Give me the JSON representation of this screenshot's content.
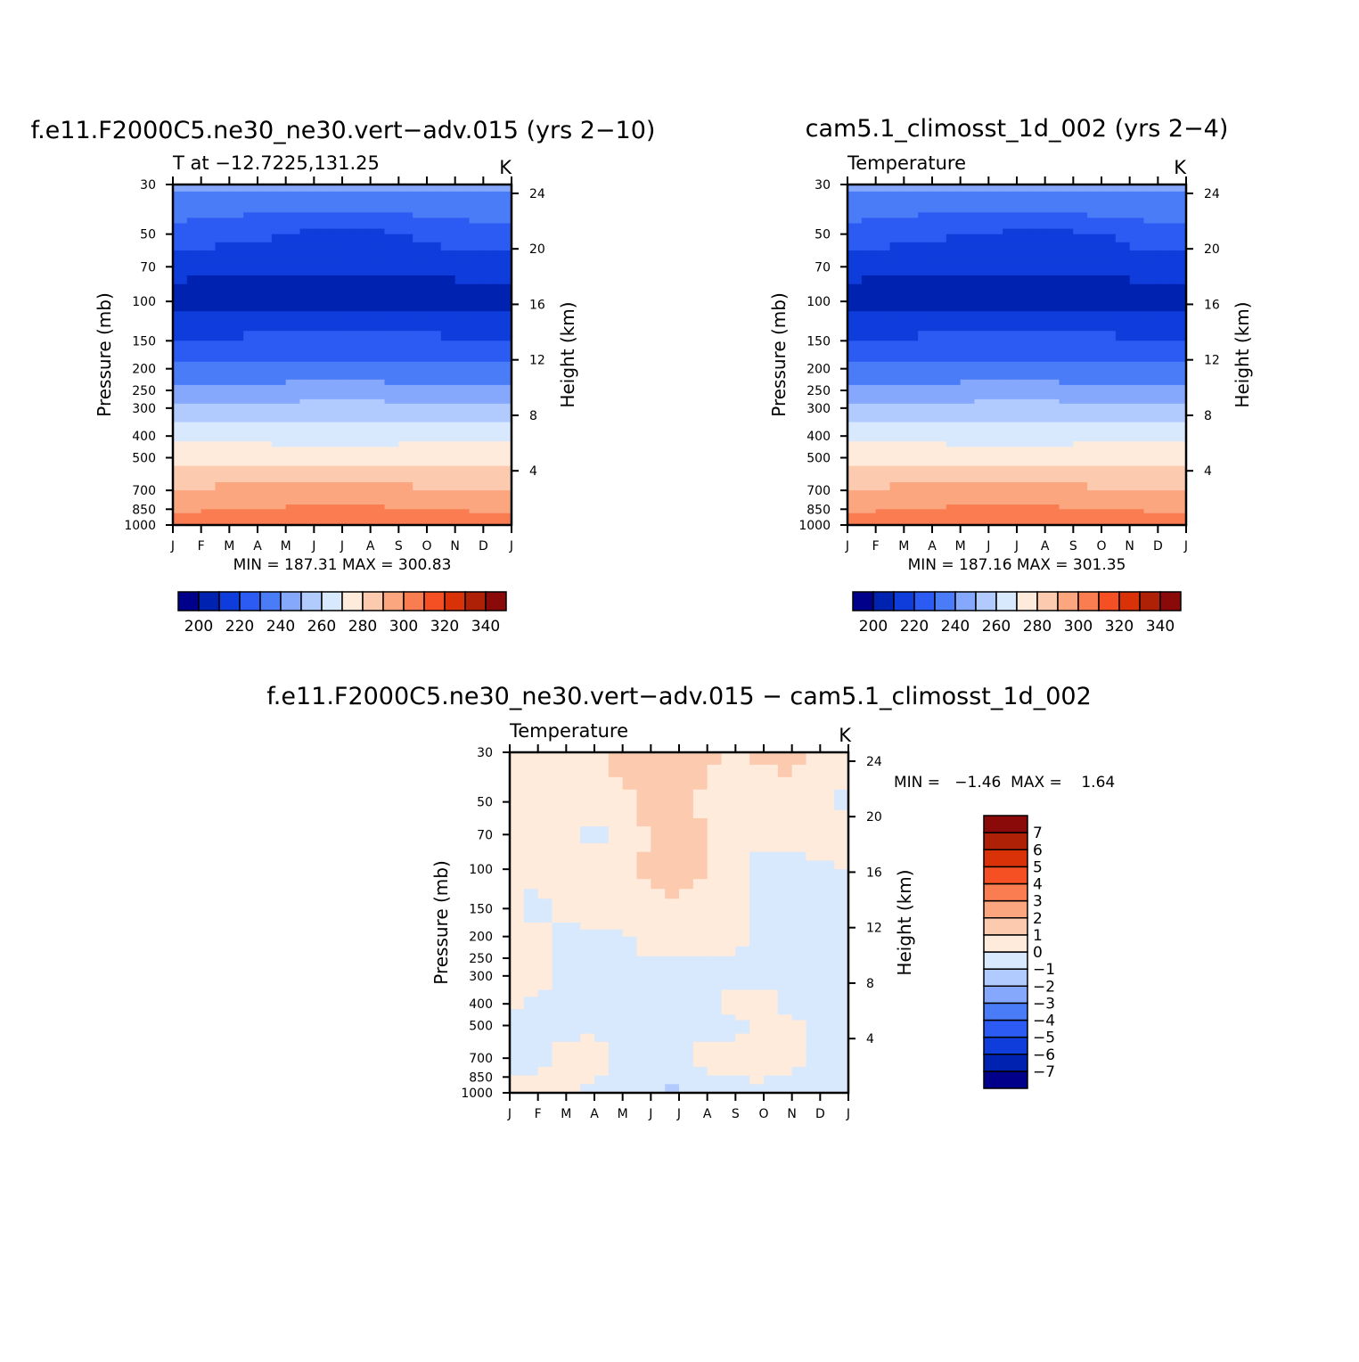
{
  "chart_data": [
    {
      "type": "heatmap",
      "title": "f.e11.F2000C5.ne30_ne30.vert−adv.015 (yrs 2−10)",
      "left_label": "T at −12.7225,131.25",
      "right_label": "K",
      "xlabel": "",
      "ylabel": "Pressure (mb)",
      "ylabel_right": "Height (km)",
      "x_ticks": [
        "J",
        "F",
        "M",
        "A",
        "M",
        "J",
        "J",
        "A",
        "S",
        "O",
        "N",
        "D",
        "J"
      ],
      "y_ticks": [
        "30",
        "50",
        "70",
        "100",
        "150",
        "200",
        "250",
        "300",
        "400",
        "500",
        "700",
        "850",
        "1000"
      ],
      "y_ticks_right": [
        "24",
        "20",
        "16",
        "12",
        "8",
        "4"
      ],
      "stats_text": "MIN = 187.31  MAX = 300.83",
      "min": 187.31,
      "max": 300.83,
      "colorbar": {
        "orientation": "horizontal",
        "colors": [
          "#00008A",
          "#0022B0",
          "#0E3DDC",
          "#2C5BF3",
          "#4B7CF8",
          "#86A8FC",
          "#B2CBFE",
          "#D8E8FD",
          "#FFEBDB",
          "#FCCAAE",
          "#FBA67F",
          "#FA7C51",
          "#F45023",
          "#DA3208",
          "#AE2106",
          "#8A0A0A"
        ],
        "labels": [
          "200",
          "220",
          "240",
          "260",
          "280",
          "300",
          "320",
          "340"
        ]
      },
      "levels_by_pressure": [
        {
          "pressure": 30,
          "values": [
            232,
            232,
            232,
            232,
            232,
            232,
            232,
            232,
            232,
            232,
            232,
            232,
            232
          ]
        },
        {
          "pressure": 40,
          "values": [
            223,
            222,
            222,
            221,
            220,
            219,
            219,
            219,
            221,
            222,
            223,
            223,
            223
          ]
        },
        {
          "pressure": 50,
          "values": [
            218,
            216,
            214,
            212,
            210,
            208,
            208,
            208,
            210,
            212,
            214,
            216,
            218
          ]
        },
        {
          "pressure": 70,
          "values": [
            205,
            204,
            203,
            202,
            202,
            202,
            202,
            202,
            202,
            203,
            204,
            205,
            205
          ]
        },
        {
          "pressure": 100,
          "values": [
            193,
            193,
            193,
            193,
            193,
            193,
            193,
            193,
            193,
            193,
            193,
            193,
            193
          ]
        },
        {
          "pressure": 150,
          "values": [
            212,
            212,
            212,
            213,
            213,
            214,
            214,
            214,
            213,
            213,
            212,
            212,
            212
          ]
        },
        {
          "pressure": 200,
          "values": [
            222,
            222,
            222,
            222,
            223,
            223,
            223,
            223,
            223,
            223,
            222,
            222,
            222
          ]
        },
        {
          "pressure": 250,
          "values": [
            234,
            234,
            234,
            234,
            234,
            235,
            235,
            235,
            234,
            234,
            234,
            234,
            234
          ]
        },
        {
          "pressure": 300,
          "values": [
            242,
            242,
            242,
            243,
            243,
            244,
            244,
            244,
            243,
            243,
            242,
            242,
            242
          ]
        },
        {
          "pressure": 400,
          "values": [
            257,
            257,
            256,
            256,
            255,
            255,
            255,
            255,
            255,
            256,
            256,
            257,
            257
          ]
        },
        {
          "pressure": 500,
          "values": [
            268,
            268,
            268,
            268,
            268,
            268,
            268,
            268,
            268,
            268,
            268,
            268,
            268
          ]
        },
        {
          "pressure": 700,
          "values": [
            281,
            281,
            282,
            282,
            282,
            283,
            283,
            283,
            282,
            281,
            281,
            281,
            281
          ]
        },
        {
          "pressure": 850,
          "values": [
            289,
            289,
            290,
            290,
            291,
            292,
            292,
            292,
            291,
            290,
            289,
            289,
            289
          ]
        },
        {
          "pressure": 1000,
          "values": [
            295,
            295,
            296,
            296,
            297,
            298,
            298,
            298,
            299,
            300,
            298,
            296,
            295
          ]
        }
      ]
    },
    {
      "type": "heatmap",
      "title": "cam5.1_climosst_1d_002 (yrs 2−4)",
      "left_label": "Temperature",
      "right_label": "K",
      "xlabel": "",
      "ylabel": "Pressure (mb)",
      "ylabel_right": "Height (km)",
      "x_ticks": [
        "J",
        "F",
        "M",
        "A",
        "M",
        "J",
        "J",
        "A",
        "S",
        "O",
        "N",
        "D",
        "J"
      ],
      "y_ticks": [
        "30",
        "50",
        "70",
        "100",
        "150",
        "200",
        "250",
        "300",
        "400",
        "500",
        "700",
        "850",
        "1000"
      ],
      "y_ticks_right": [
        "24",
        "20",
        "16",
        "12",
        "8",
        "4"
      ],
      "stats_text": "MIN = 187.16  MAX = 301.35",
      "min": 187.16,
      "max": 301.35,
      "colorbar": {
        "orientation": "horizontal",
        "colors": [
          "#00008A",
          "#0022B0",
          "#0E3DDC",
          "#2C5BF3",
          "#4B7CF8",
          "#86A8FC",
          "#B2CBFE",
          "#D8E8FD",
          "#FFEBDB",
          "#FCCAAE",
          "#FBA67F",
          "#FA7C51",
          "#F45023",
          "#DA3208",
          "#AE2106",
          "#8A0A0A"
        ],
        "labels": [
          "200",
          "220",
          "240",
          "260",
          "280",
          "300",
          "320",
          "340"
        ]
      },
      "levels_by_pressure": [
        {
          "pressure": 30,
          "values": [
            232,
            232,
            232,
            232,
            232,
            232,
            232,
            232,
            232,
            232,
            232,
            232,
            232
          ]
        },
        {
          "pressure": 40,
          "values": [
            223,
            222,
            222,
            221,
            220,
            219,
            219,
            219,
            220,
            222,
            223,
            223,
            223
          ]
        },
        {
          "pressure": 50,
          "values": [
            218,
            216,
            214,
            212,
            210,
            209,
            208,
            208,
            208,
            210,
            213,
            216,
            218
          ]
        },
        {
          "pressure": 70,
          "values": [
            205,
            204,
            203,
            202,
            202,
            202,
            202,
            202,
            202,
            203,
            204,
            205,
            205
          ]
        },
        {
          "pressure": 100,
          "values": [
            193,
            193,
            193,
            193,
            193,
            193,
            193,
            193,
            193,
            193,
            193,
            193,
            193
          ]
        },
        {
          "pressure": 150,
          "values": [
            212,
            212,
            212,
            213,
            213,
            213,
            213,
            213,
            213,
            213,
            212,
            212,
            212
          ]
        },
        {
          "pressure": 200,
          "values": [
            222,
            222,
            222,
            222,
            223,
            223,
            223,
            223,
            223,
            223,
            222,
            222,
            222
          ]
        },
        {
          "pressure": 250,
          "values": [
            234,
            234,
            234,
            234,
            234,
            235,
            235,
            235,
            234,
            234,
            234,
            234,
            234
          ]
        },
        {
          "pressure": 300,
          "values": [
            242,
            242,
            242,
            243,
            243,
            244,
            244,
            244,
            243,
            243,
            242,
            242,
            242
          ]
        },
        {
          "pressure": 400,
          "values": [
            257,
            257,
            256,
            256,
            255,
            255,
            255,
            255,
            255,
            256,
            256,
            257,
            257
          ]
        },
        {
          "pressure": 500,
          "values": [
            268,
            268,
            268,
            268,
            268,
            268,
            268,
            268,
            268,
            268,
            268,
            268,
            268
          ]
        },
        {
          "pressure": 700,
          "values": [
            281,
            281,
            282,
            282,
            283,
            283,
            283,
            283,
            282,
            281,
            281,
            281,
            281
          ]
        },
        {
          "pressure": 850,
          "values": [
            289,
            289,
            290,
            290,
            291,
            292,
            292,
            292,
            291,
            290,
            289,
            289,
            289
          ]
        },
        {
          "pressure": 1000,
          "values": [
            295,
            295,
            296,
            296,
            297,
            298,
            298,
            299,
            300,
            301,
            299,
            296,
            295
          ]
        }
      ]
    },
    {
      "type": "heatmap",
      "title": "f.e11.F2000C5.ne30_ne30.vert−adv.015 − cam5.1_climosst_1d_002",
      "left_label": "Temperature",
      "right_label": "K",
      "xlabel": "",
      "ylabel": "Pressure (mb)",
      "ylabel_right": "Height (km)",
      "x_ticks": [
        "J",
        "F",
        "M",
        "A",
        "M",
        "J",
        "J",
        "A",
        "S",
        "O",
        "N",
        "D",
        "J"
      ],
      "y_ticks": [
        "30",
        "50",
        "70",
        "100",
        "150",
        "200",
        "250",
        "300",
        "400",
        "500",
        "700",
        "850",
        "1000"
      ],
      "y_ticks_right": [
        "24",
        "20",
        "16",
        "12",
        "8",
        "4"
      ],
      "stats_text": "MIN =   −1.46  MAX =    1.64",
      "min": -1.46,
      "max": 1.64,
      "colorbar": {
        "orientation": "vertical",
        "colors_bottom_to_top": [
          "#00008A",
          "#0022B0",
          "#0E3DDC",
          "#2C5BF3",
          "#4B7CF8",
          "#86A8FC",
          "#B2CBFE",
          "#D8E8FD",
          "#FFEBDB",
          "#FCCAAE",
          "#FBA67F",
          "#FA7C51",
          "#F45023",
          "#DA3208",
          "#AE2106",
          "#8A0A0A"
        ],
        "labels_bottom_to_top": [
          "−7",
          "−6",
          "−5",
          "−4",
          "−3",
          "−2",
          "−1",
          "0",
          "1",
          "2",
          "3",
          "4",
          "5",
          "6",
          "7"
        ]
      },
      "levels_by_pressure": [
        {
          "pressure": 30,
          "values": [
            0.5,
            0.6,
            0.7,
            0.8,
            1.2,
            1.4,
            1.5,
            1.3,
            0.6,
            1.2,
            1.3,
            0.8,
            0.5
          ]
        },
        {
          "pressure": 50,
          "values": [
            0.3,
            0.5,
            0.6,
            0.5,
            0.8,
            1.2,
            1.3,
            0.9,
            0.4,
            0.6,
            0.5,
            0.4,
            -0.2
          ]
        },
        {
          "pressure": 70,
          "values": [
            0.2,
            0.3,
            0.5,
            -0.3,
            0.5,
            0.9,
            1.4,
            1.1,
            0.4,
            0.3,
            0.4,
            0.5,
            1.1
          ]
        },
        {
          "pressure": 100,
          "values": [
            0.1,
            0.3,
            0.4,
            0.6,
            0.7,
            1.1,
            1.3,
            1.2,
            0.3,
            -0.2,
            -0.3,
            -0.2,
            -0.1
          ]
        },
        {
          "pressure": 150,
          "values": [
            0.2,
            -0.2,
            0.3,
            0.5,
            0.6,
            0.8,
            0.9,
            0.4,
            0.2,
            -0.3,
            -0.3,
            -0.3,
            -0.2
          ]
        },
        {
          "pressure": 200,
          "values": [
            0.3,
            0.2,
            -0.2,
            -0.3,
            -0.2,
            0.3,
            0.2,
            0.4,
            0.3,
            -0.2,
            -0.2,
            -0.3,
            -0.3
          ]
        },
        {
          "pressure": 300,
          "values": [
            0.4,
            0.5,
            -0.3,
            -0.3,
            -0.3,
            -0.3,
            -0.2,
            -0.3,
            -0.3,
            -0.3,
            -0.3,
            -0.3,
            -0.2
          ]
        },
        {
          "pressure": 400,
          "values": [
            0.2,
            -0.2,
            -0.3,
            -0.3,
            -0.3,
            -0.3,
            -0.3,
            -0.3,
            0.3,
            0.4,
            -0.3,
            -0.3,
            -0.2
          ]
        },
        {
          "pressure": 500,
          "values": [
            -0.2,
            -0.3,
            -0.3,
            -0.3,
            -0.3,
            -0.3,
            -0.3,
            -0.3,
            -0.3,
            0.4,
            0.3,
            -0.3,
            -0.2
          ]
        },
        {
          "pressure": 700,
          "values": [
            -0.2,
            -0.3,
            0.4,
            0.5,
            -0.3,
            -0.3,
            -0.3,
            0.3,
            0.4,
            0.5,
            0.3,
            -0.3,
            -0.2
          ]
        },
        {
          "pressure": 1000,
          "values": [
            0.3,
            0.3,
            0.3,
            -0.3,
            -0.3,
            -0.4,
            -1.2,
            -0.5,
            -0.3,
            -0.3,
            -0.3,
            -0.3,
            -0.2
          ]
        }
      ]
    }
  ]
}
